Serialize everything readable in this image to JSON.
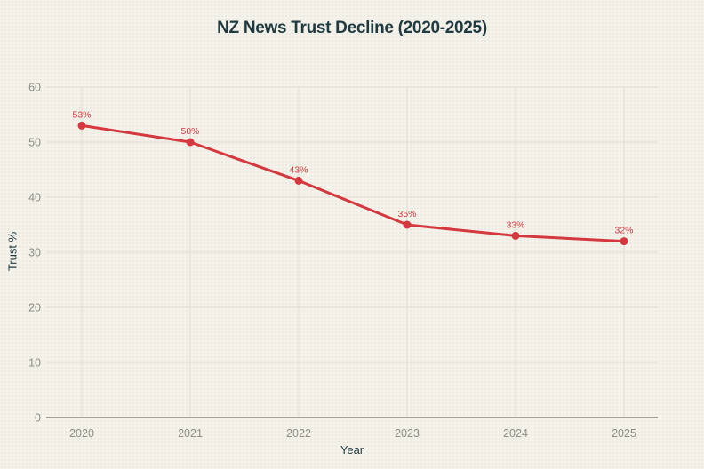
{
  "page": {
    "background": "#f4f2ea"
  },
  "chart_data": {
    "type": "line",
    "title": "NZ News Trust Decline (2020-2025)",
    "xlabel": "Year",
    "ylabel": "Trust %",
    "categories": [
      "2020",
      "2021",
      "2022",
      "2023",
      "2024",
      "2025"
    ],
    "series": [
      {
        "name": "Trust %",
        "values": [
          53,
          50,
          43,
          35,
          33,
          32
        ],
        "point_labels": [
          "53%",
          "50%",
          "43%",
          "35%",
          "33%",
          "32%"
        ],
        "color": "#d5393f"
      }
    ],
    "yticks": [
      0,
      10,
      20,
      30,
      40,
      50,
      60
    ],
    "ylim": [
      0,
      60
    ],
    "grid": true,
    "legend_position": "none",
    "colors": {
      "title": "#1f3a41",
      "axis_titles": "#1f3a41",
      "tick_labels": "#8e8d86",
      "gridline": "#dfddd3",
      "axis_line": "#98968b",
      "line": "#d5393f",
      "point_label": "#d5393f"
    }
  }
}
